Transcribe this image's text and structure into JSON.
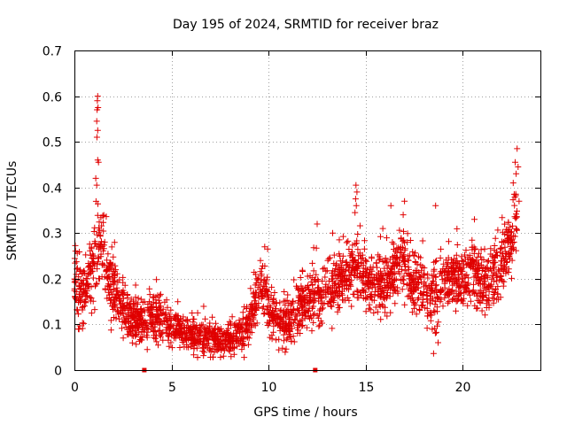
{
  "chart_data": {
    "type": "scatter",
    "title": "Day 195 of 2024, SRMTID for receiver braz",
    "xlabel": "GPS time / hours",
    "ylabel": "SRMTID / TECUs",
    "xlim": [
      0,
      24
    ],
    "ylim": [
      0,
      0.7
    ],
    "xticks": [
      0,
      5,
      10,
      15,
      20
    ],
    "yticks": [
      0,
      0.1,
      0.2,
      0.3,
      0.4,
      0.5,
      0.6,
      0.7
    ],
    "xtick_labels": [
      "0",
      "5",
      "10",
      "15",
      "20"
    ],
    "ytick_labels": [
      "0",
      "0.1",
      "0.2",
      "0.3",
      "0.4",
      "0.5",
      "0.6",
      "0.7"
    ],
    "grid": true,
    "marker": "+",
    "color": "#e00000",
    "series": [
      {
        "name": "SRMTID",
        "profile_hours": [
          0.0,
          0.3,
          0.7,
          1.0,
          1.2,
          1.5,
          1.8,
          2.0,
          2.3,
          2.6,
          3.0,
          3.5,
          4.0,
          4.5,
          5.0,
          5.5,
          6.0,
          6.5,
          7.0,
          7.5,
          8.0,
          8.5,
          9.0,
          9.3,
          9.6,
          9.9,
          10.2,
          10.5,
          11.0,
          11.5,
          12.0,
          12.4,
          12.7,
          13.0,
          13.5,
          14.0,
          14.5,
          15.0,
          15.5,
          16.0,
          16.5,
          17.0,
          17.5,
          18.0,
          18.5,
          19.0,
          19.5,
          20.0,
          20.5,
          21.0,
          21.5,
          22.0,
          22.4,
          22.8
        ],
        "profile_center": [
          0.2,
          0.17,
          0.19,
          0.24,
          0.28,
          0.24,
          0.2,
          0.19,
          0.15,
          0.13,
          0.11,
          0.1,
          0.12,
          0.11,
          0.1,
          0.09,
          0.08,
          0.07,
          0.07,
          0.065,
          0.07,
          0.075,
          0.1,
          0.15,
          0.18,
          0.16,
          0.12,
          0.1,
          0.11,
          0.13,
          0.16,
          0.17,
          0.15,
          0.17,
          0.19,
          0.21,
          0.23,
          0.2,
          0.19,
          0.2,
          0.22,
          0.24,
          0.2,
          0.17,
          0.15,
          0.19,
          0.21,
          0.2,
          0.22,
          0.19,
          0.2,
          0.24,
          0.27,
          0.34
        ],
        "profile_spread": [
          0.06,
          0.05,
          0.05,
          0.06,
          0.07,
          0.06,
          0.06,
          0.05,
          0.04,
          0.04,
          0.03,
          0.035,
          0.04,
          0.035,
          0.03,
          0.025,
          0.025,
          0.025,
          0.025,
          0.02,
          0.025,
          0.03,
          0.035,
          0.04,
          0.04,
          0.04,
          0.035,
          0.03,
          0.04,
          0.04,
          0.045,
          0.05,
          0.04,
          0.045,
          0.04,
          0.045,
          0.05,
          0.045,
          0.04,
          0.045,
          0.05,
          0.05,
          0.05,
          0.05,
          0.045,
          0.05,
          0.05,
          0.045,
          0.05,
          0.045,
          0.045,
          0.05,
          0.05,
          0.05
        ],
        "spikes": [
          {
            "x": 1.2,
            "y": 0.6
          },
          {
            "x": 1.18,
            "y": 0.59
          },
          {
            "x": 1.22,
            "y": 0.575
          },
          {
            "x": 1.17,
            "y": 0.57
          },
          {
            "x": 1.15,
            "y": 0.545
          },
          {
            "x": 1.2,
            "y": 0.525
          },
          {
            "x": 1.16,
            "y": 0.51
          },
          {
            "x": 1.2,
            "y": 0.46
          },
          {
            "x": 1.24,
            "y": 0.455
          },
          {
            "x": 1.1,
            "y": 0.42
          },
          {
            "x": 1.15,
            "y": 0.405
          },
          {
            "x": 14.5,
            "y": 0.405
          },
          {
            "x": 14.55,
            "y": 0.39
          },
          {
            "x": 14.48,
            "y": 0.375
          },
          {
            "x": 14.52,
            "y": 0.36
          },
          {
            "x": 14.45,
            "y": 0.345
          },
          {
            "x": 9.8,
            "y": 0.27
          },
          {
            "x": 9.95,
            "y": 0.265
          },
          {
            "x": 22.8,
            "y": 0.485
          },
          {
            "x": 22.7,
            "y": 0.455
          },
          {
            "x": 22.85,
            "y": 0.445
          },
          {
            "x": 22.75,
            "y": 0.43
          },
          {
            "x": 22.6,
            "y": 0.41
          },
          {
            "x": 22.65,
            "y": 0.385
          },
          {
            "x": 22.9,
            "y": 0.37
          },
          {
            "x": 18.6,
            "y": 0.36
          },
          {
            "x": 17.0,
            "y": 0.37
          },
          {
            "x": 16.3,
            "y": 0.36
          },
          {
            "x": 20.6,
            "y": 0.33
          },
          {
            "x": 12.5,
            "y": 0.32
          },
          {
            "x": 13.3,
            "y": 0.3
          }
        ],
        "zero_points": [
          {
            "x": 3.6,
            "y": 0.0
          },
          {
            "x": 12.4,
            "y": 0.0
          }
        ]
      }
    ]
  }
}
